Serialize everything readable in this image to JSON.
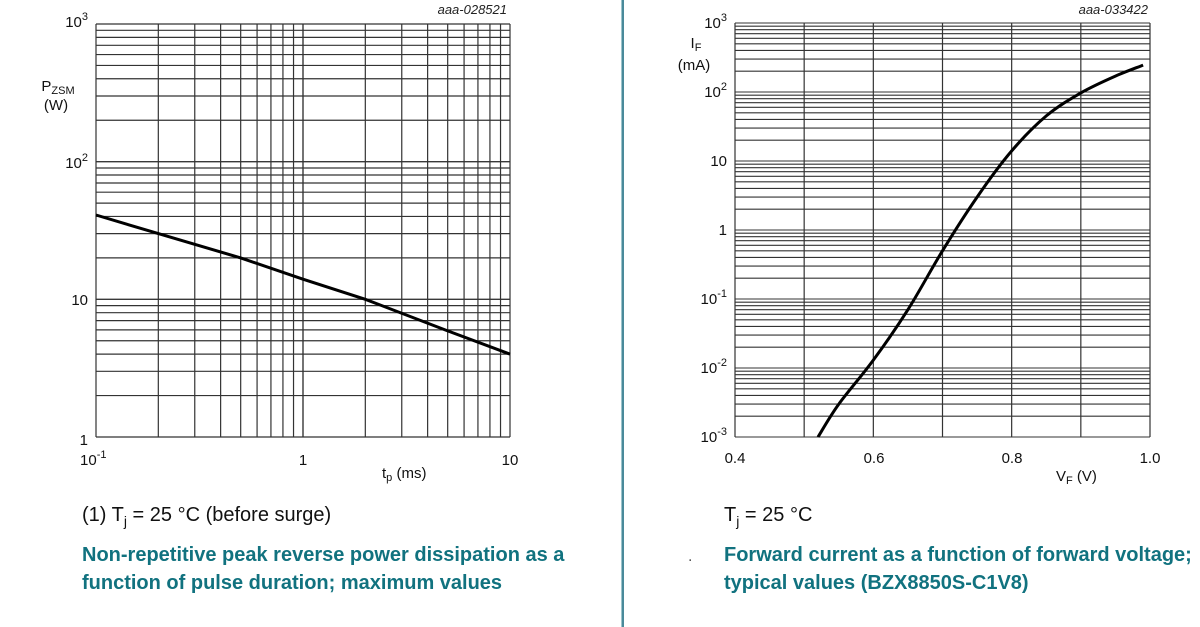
{
  "colors": {
    "caption": "#11727f",
    "divider": "#4a8a9a",
    "grid": "#333333",
    "curve": "#000000"
  },
  "left": {
    "code": "aaa-028521",
    "y_label_main": "P",
    "y_label_sub": "ZSM",
    "y_unit": "(W)",
    "y_ticks": [
      "10",
      "3",
      "10",
      "2",
      "10",
      "1"
    ],
    "x_ticks": [
      "10",
      "-1",
      "1",
      "10"
    ],
    "x_label_main": "t",
    "x_label_sub": "p",
    "x_unit": " (ms)",
    "note_prefix": "(1) T",
    "note_sub": "j",
    "note_suffix": " = 25 °C (before surge)",
    "caption": "Non-repetitive peak reverse power dissipation as a function of pulse duration; maximum values"
  },
  "right": {
    "code": "aaa-033422",
    "y_label_main": "I",
    "y_label_sub": "F",
    "y_unit": "(mA)",
    "x_ticks": [
      "0.4",
      "0.6",
      "0.8",
      "1.0"
    ],
    "x_label_main": "V",
    "x_label_sub": "F",
    "x_unit": " (V)",
    "note_prefix": "T",
    "note_sub": "j",
    "note_suffix": " = 25 °C",
    "bullet": ".",
    "caption": "Forward current as a function of forward voltage; typical values (BZX8850S-C1V8)"
  },
  "chart_data": [
    {
      "type": "line",
      "title": "Non-repetitive peak reverse power dissipation as a function of pulse duration; maximum values",
      "xlabel": "tp (ms)",
      "ylabel": "PZSM (W)",
      "xscale": "log",
      "yscale": "log",
      "xlim": [
        0.1,
        10
      ],
      "ylim": [
        1,
        1000
      ],
      "x_tick_labels": [
        "10^-1",
        "1",
        "10"
      ],
      "y_tick_labels": [
        "1",
        "10",
        "10^2",
        "10^3"
      ],
      "grid": true,
      "annotation": "(1) Tj = 25 °C (before surge)",
      "figure_id": "aaa-028521",
      "series": [
        {
          "name": "PZSM max",
          "x": [
            0.1,
            0.2,
            0.5,
            1,
            2,
            5,
            10
          ],
          "y": [
            41,
            30,
            20,
            14,
            10,
            5.9,
            4.0
          ]
        }
      ]
    },
    {
      "type": "line",
      "title": "Forward current as a function of forward voltage; typical values (BZX8850S-C1V8)",
      "xlabel": "VF (V)",
      "ylabel": "IF (mA)",
      "xscale": "linear",
      "yscale": "log",
      "xlim": [
        0.4,
        1.0
      ],
      "ylim": [
        0.001,
        1000
      ],
      "x_tick_labels": [
        "0.4",
        "0.6",
        "0.8",
        "1.0"
      ],
      "y_tick_labels": [
        "10^-3",
        "10^-2",
        "10^-1",
        "1",
        "10",
        "10^2",
        "10^3"
      ],
      "grid": true,
      "annotation": "Tj = 25 °C",
      "figure_id": "aaa-033422",
      "series": [
        {
          "name": "IF typical",
          "x": [
            0.52,
            0.55,
            0.6,
            0.65,
            0.7,
            0.75,
            0.8,
            0.85,
            0.9,
            0.95,
            0.99
          ],
          "y": [
            0.001,
            0.003,
            0.013,
            0.07,
            0.5,
            3.0,
            14,
            45,
            97,
            170,
            245
          ]
        }
      ]
    }
  ]
}
